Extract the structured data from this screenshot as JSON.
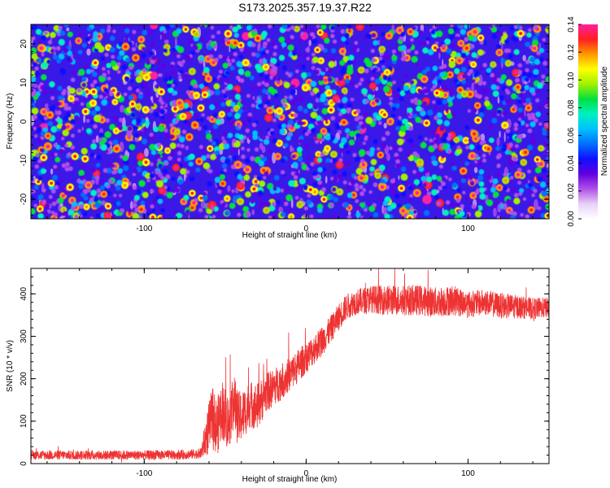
{
  "title": "S173.2025.357.19.37.R22",
  "colors": {
    "line": "#ee3333",
    "axis": "#000000",
    "colormap": [
      "#ffffff",
      "#e8d0f8",
      "#b050e8",
      "#6000e0",
      "#1010ff",
      "#0070ff",
      "#00c0ff",
      "#00f0c0",
      "#00e040",
      "#a0f000",
      "#ffff00",
      "#ff9900",
      "#ff2020",
      "#ff20a0"
    ]
  },
  "chart_data": [
    {
      "type": "heatmap",
      "title": "S173.2025.357.19.37.R22",
      "xlabel": "Height of straight line (km)",
      "ylabel": "Frequency (Hz)",
      "xlim": [
        -170,
        150
      ],
      "ylim": [
        -25,
        25
      ],
      "x_ticks": [
        -100,
        0,
        100
      ],
      "y_ticks": [
        -20,
        -10,
        0,
        10,
        20
      ],
      "colorbar": {
        "label": "Normalized spectral amplitude",
        "range": [
          0,
          0.14
        ],
        "ticks": [
          "0.00",
          "0.02",
          "0.04",
          "0.06",
          "0.08",
          "0.10",
          "0.12",
          "0.14"
        ]
      },
      "description_values": {
        "mean_amplitude": 0.04,
        "max_amplitude": 0.14
      }
    },
    {
      "type": "line",
      "xlabel": "Height of straight line (km)",
      "ylabel": "SNR (10 * v/v)",
      "xlim": [
        -170,
        150
      ],
      "ylim": [
        0,
        460
      ],
      "x_ticks": [
        -100,
        0,
        100
      ],
      "y_ticks": [
        0,
        100,
        200,
        300,
        400
      ],
      "series": [
        {
          "name": "SNR",
          "x": [
            -170,
            -150,
            -130,
            -110,
            -90,
            -75,
            -65,
            -62,
            -58,
            -55,
            -52,
            -48,
            -45,
            -42,
            -38,
            -35,
            -30,
            -25,
            -20,
            -15,
            -10,
            -5,
            0,
            5,
            10,
            15,
            20,
            25,
            30,
            40,
            50,
            60,
            70,
            80,
            90,
            100,
            110,
            120,
            130,
            140,
            150
          ],
          "mean": [
            20,
            20,
            20,
            20,
            20,
            21,
            24,
            60,
            110,
            85,
            130,
            95,
            150,
            105,
            120,
            140,
            135,
            165,
            180,
            195,
            210,
            230,
            250,
            270,
            290,
            315,
            345,
            370,
            380,
            388,
            385,
            385,
            385,
            380,
            385,
            375,
            380,
            372,
            370,
            365,
            368
          ],
          "noise": [
            14,
            14,
            14,
            14,
            14,
            14,
            15,
            60,
            90,
            85,
            90,
            85,
            90,
            80,
            75,
            70,
            70,
            60,
            55,
            55,
            50,
            50,
            45,
            45,
            45,
            40,
            40,
            38,
            38,
            40,
            45,
            45,
            45,
            45,
            45,
            40,
            38,
            38,
            35,
            32,
            30
          ]
        }
      ]
    }
  ]
}
